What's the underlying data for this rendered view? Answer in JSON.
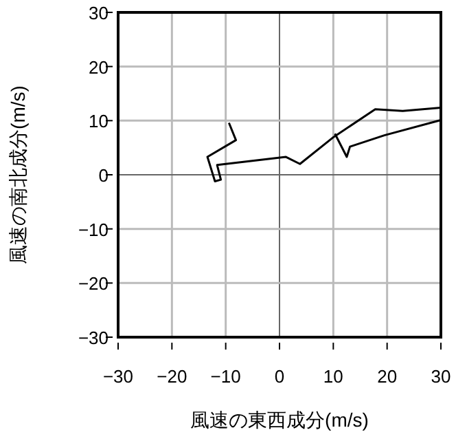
{
  "chart_data": {
    "type": "line",
    "xlabel": "風速の東西成分(m/s)",
    "ylabel": "風速の南北成分(m/s)",
    "xlim": [
      -30,
      30
    ],
    "ylim": [
      -30,
      30
    ],
    "xticks": [
      -30,
      -20,
      -10,
      0,
      10,
      20,
      30
    ],
    "yticks": [
      -30,
      -20,
      -10,
      0,
      10,
      20,
      30
    ],
    "grid": true,
    "series": [
      {
        "color": "#000000",
        "x": [
          30,
          22.9,
          17.8,
          10.1,
          3.8,
          1.2,
          -11.6,
          -10.9,
          -12,
          -13.4,
          -8.1,
          -9.4
        ],
        "values": [
          12.4,
          11.8,
          12.1,
          7.0,
          2.0,
          3.3,
          1.8,
          -0.9,
          -1.2,
          3.3,
          6.4,
          9.6
        ]
      },
      {
        "color": "#000000",
        "x": [
          30,
          19.5,
          13.1,
          12.5,
          10.3
        ],
        "values": [
          10.1,
          7.3,
          5.2,
          3.3,
          7.6
        ]
      }
    ]
  }
}
